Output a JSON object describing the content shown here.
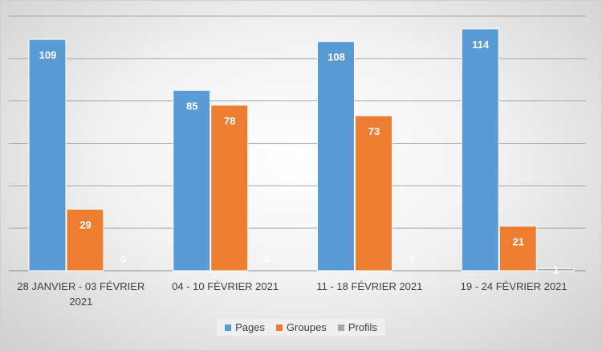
{
  "chart_data": {
    "type": "bar",
    "title": "",
    "xlabel": "",
    "ylabel": "",
    "ylim": [
      0,
      120
    ],
    "grid": true,
    "legend_position": "bottom",
    "categories": [
      [
        "28 JANVIER - 03 FÉVRIER",
        "2021"
      ],
      [
        "04 - 10 FÉVRIER 2021"
      ],
      [
        "11 - 18 FÉVRIER 2021"
      ],
      [
        "19 - 24 FÉVRIER 2021"
      ]
    ],
    "series": [
      {
        "name": "Pages",
        "color": "#5b9bd5",
        "values": [
          109,
          85,
          108,
          114
        ]
      },
      {
        "name": "Groupes",
        "color": "#ed7d31",
        "values": [
          29,
          78,
          73,
          21
        ]
      },
      {
        "name": "Profils",
        "color": "#a5a5a5",
        "values": [
          0,
          0,
          0,
          1
        ]
      }
    ]
  }
}
